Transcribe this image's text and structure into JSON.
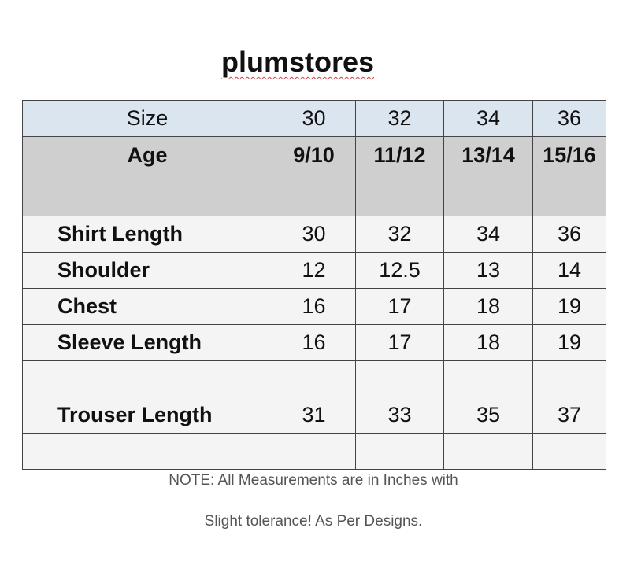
{
  "title": "plumstores",
  "table": {
    "size": {
      "label": "Size",
      "values": [
        "30",
        "32",
        "34",
        "36"
      ]
    },
    "age": {
      "label": "Age",
      "values": [
        "9/10",
        "11/12",
        "13/14",
        "15/16"
      ]
    },
    "rows": [
      {
        "label": "Shirt Length",
        "values": [
          "30",
          "32",
          "34",
          "36"
        ]
      },
      {
        "label": "Shoulder",
        "values": [
          "12",
          "12.5",
          "13",
          "14"
        ]
      },
      {
        "label": "Chest",
        "values": [
          "16",
          "17",
          "18",
          "19"
        ]
      },
      {
        "label": "Sleeve Length",
        "values": [
          "16",
          "17",
          "18",
          "19"
        ]
      },
      {
        "label": "",
        "values": [
          "",
          "",
          "",
          ""
        ]
      },
      {
        "label": "Trouser Length",
        "values": [
          "31",
          "33",
          "35",
          "37"
        ]
      },
      {
        "label": "",
        "values": [
          "",
          "",
          "",
          ""
        ]
      }
    ]
  },
  "note": {
    "line1": "NOTE:  All Measurements are in Inches with",
    "line2": "Slight tolerance! As Per Designs."
  }
}
